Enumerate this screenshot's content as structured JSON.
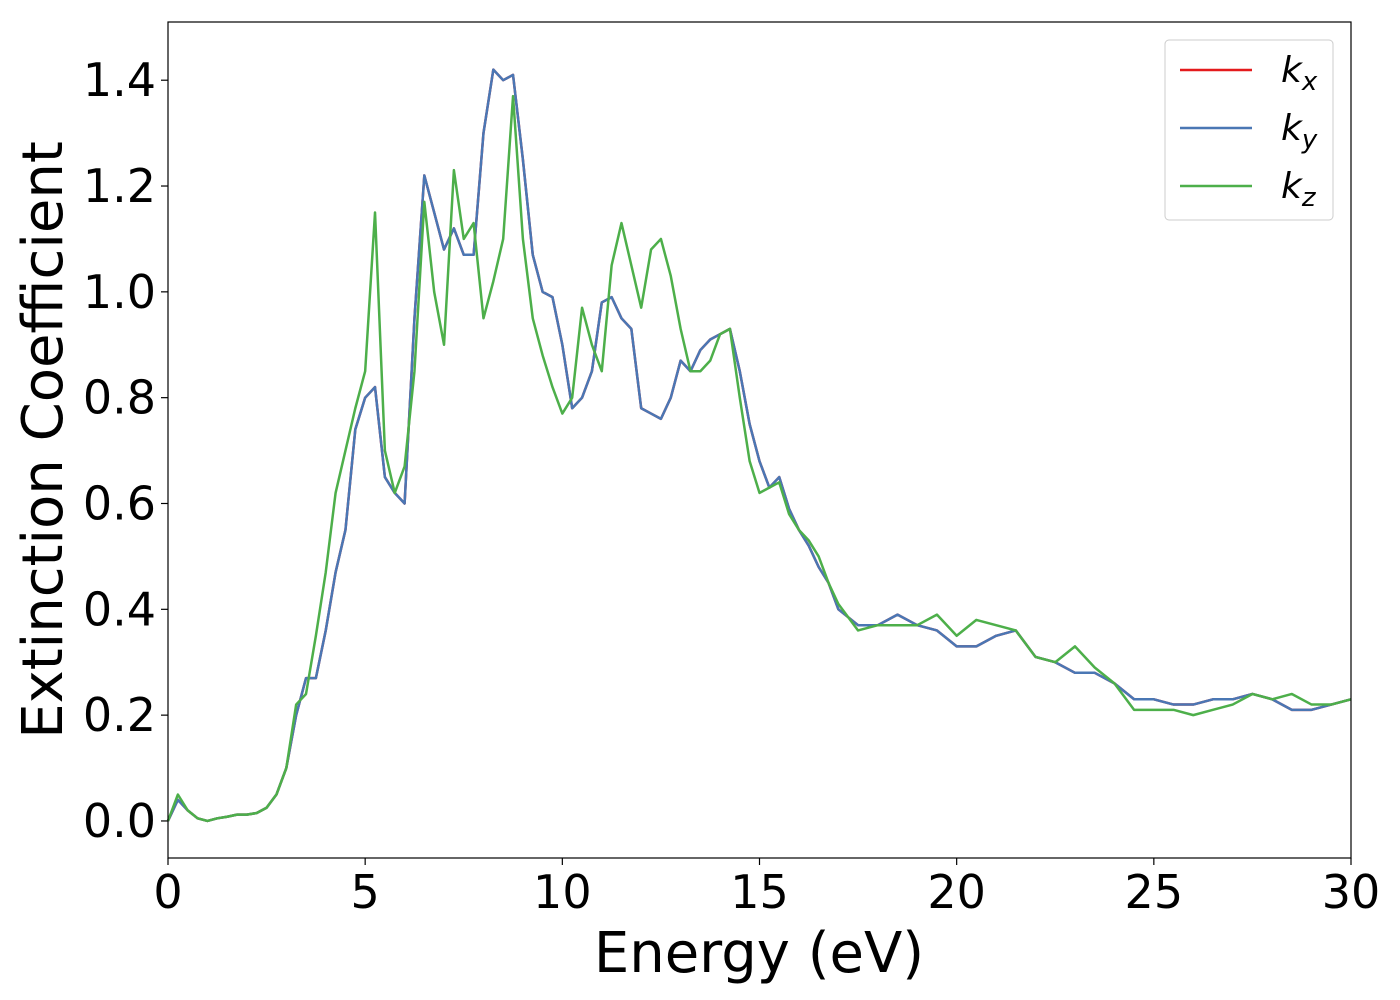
{
  "chart_data": {
    "type": "line",
    "x_label": "Energy (eV)",
    "y_label": "Extinction Coefficient",
    "x": [
      0,
      0.25,
      0.5,
      0.75,
      1,
      1.25,
      1.5,
      1.75,
      2,
      2.25,
      2.5,
      2.75,
      3,
      3.25,
      3.5,
      3.75,
      4,
      4.25,
      4.5,
      4.75,
      5,
      5.25,
      5.5,
      5.75,
      6,
      6.25,
      6.5,
      6.75,
      7,
      7.25,
      7.5,
      7.75,
      8,
      8.25,
      8.5,
      8.75,
      9,
      9.25,
      9.5,
      9.75,
      10,
      10.25,
      10.5,
      10.75,
      11,
      11.25,
      11.5,
      11.75,
      12,
      12.25,
      12.5,
      12.75,
      13,
      13.25,
      13.5,
      13.75,
      14,
      14.25,
      14.5,
      14.75,
      15,
      15.25,
      15.5,
      15.75,
      16,
      16.25,
      16.5,
      16.75,
      17,
      17.5,
      18,
      18.5,
      19,
      19.5,
      20,
      20.5,
      21,
      21.5,
      22,
      22.5,
      23,
      23.5,
      24,
      24.5,
      25,
      25.5,
      26,
      26.5,
      27,
      27.5,
      28,
      28.5,
      29,
      29.5,
      30
    ],
    "series": [
      {
        "name": "k_x",
        "color": "#e41a1c",
        "values": [
          0,
          0.04,
          0.02,
          0.005,
          0,
          0.005,
          0.008,
          0.012,
          0.012,
          0.015,
          0.025,
          0.05,
          0.1,
          0.2,
          0.27,
          0.27,
          0.36,
          0.47,
          0.55,
          0.74,
          0.8,
          0.82,
          0.65,
          0.62,
          0.6,
          0.95,
          1.22,
          1.15,
          1.08,
          1.12,
          1.07,
          1.07,
          1.3,
          1.42,
          1.4,
          1.41,
          1.25,
          1.07,
          1,
          0.99,
          0.9,
          0.78,
          0.8,
          0.85,
          0.98,
          0.99,
          0.95,
          0.93,
          0.78,
          0.77,
          0.76,
          0.8,
          0.87,
          0.85,
          0.89,
          0.91,
          0.92,
          0.93,
          0.85,
          0.75,
          0.68,
          0.63,
          0.65,
          0.59,
          0.55,
          0.52,
          0.48,
          0.45,
          0.4,
          0.37,
          0.37,
          0.39,
          0.37,
          0.36,
          0.33,
          0.33,
          0.35,
          0.36,
          0.31,
          0.3,
          0.28,
          0.28,
          0.26,
          0.23,
          0.23,
          0.22,
          0.22,
          0.23,
          0.23,
          0.24,
          0.23,
          0.21,
          0.21,
          0.22,
          0.23
        ]
      },
      {
        "name": "k_y",
        "color": "#4a77b4",
        "values": [
          0,
          0.04,
          0.02,
          0.005,
          0,
          0.005,
          0.008,
          0.012,
          0.012,
          0.015,
          0.025,
          0.05,
          0.1,
          0.2,
          0.27,
          0.27,
          0.36,
          0.47,
          0.55,
          0.74,
          0.8,
          0.82,
          0.65,
          0.62,
          0.6,
          0.95,
          1.22,
          1.15,
          1.08,
          1.12,
          1.07,
          1.07,
          1.3,
          1.42,
          1.4,
          1.41,
          1.25,
          1.07,
          1,
          0.99,
          0.9,
          0.78,
          0.8,
          0.85,
          0.98,
          0.99,
          0.95,
          0.93,
          0.78,
          0.77,
          0.76,
          0.8,
          0.87,
          0.85,
          0.89,
          0.91,
          0.92,
          0.93,
          0.85,
          0.75,
          0.68,
          0.63,
          0.65,
          0.59,
          0.55,
          0.52,
          0.48,
          0.45,
          0.4,
          0.37,
          0.37,
          0.39,
          0.37,
          0.36,
          0.33,
          0.33,
          0.35,
          0.36,
          0.31,
          0.3,
          0.28,
          0.28,
          0.26,
          0.23,
          0.23,
          0.22,
          0.22,
          0.23,
          0.23,
          0.24,
          0.23,
          0.21,
          0.21,
          0.22,
          0.23
        ]
      },
      {
        "name": "k_z",
        "color": "#4daf4a",
        "values": [
          0,
          0.05,
          0.02,
          0.005,
          0,
          0.005,
          0.008,
          0.012,
          0.012,
          0.015,
          0.025,
          0.05,
          0.1,
          0.22,
          0.24,
          0.35,
          0.47,
          0.62,
          0.7,
          0.78,
          0.85,
          1.15,
          0.7,
          0.62,
          0.67,
          0.85,
          1.17,
          1,
          0.9,
          1.23,
          1.1,
          1.13,
          0.95,
          1.02,
          1.1,
          1.37,
          1.1,
          0.95,
          0.88,
          0.82,
          0.77,
          0.8,
          0.97,
          0.9,
          0.85,
          1.05,
          1.13,
          1.05,
          0.97,
          1.08,
          1.1,
          1.03,
          0.93,
          0.85,
          0.85,
          0.87,
          0.92,
          0.93,
          0.8,
          0.68,
          0.62,
          0.63,
          0.64,
          0.58,
          0.55,
          0.53,
          0.5,
          0.45,
          0.41,
          0.36,
          0.37,
          0.37,
          0.37,
          0.39,
          0.35,
          0.38,
          0.37,
          0.36,
          0.31,
          0.3,
          0.33,
          0.29,
          0.26,
          0.21,
          0.21,
          0.21,
          0.2,
          0.21,
          0.22,
          0.24,
          0.23,
          0.24,
          0.22,
          0.22,
          0.23
        ]
      }
    ],
    "xlim": [
      0,
      30
    ],
    "xticks": [
      0,
      5,
      10,
      15,
      20,
      25,
      30
    ],
    "ylim": [
      -0.07,
      1.51
    ],
    "yticks": [
      {
        "value": 0,
        "label": "0.0"
      },
      0.2,
      0.4,
      0.6,
      0.8,
      {
        "value": 1,
        "label": "1.0"
      },
      1.2,
      1.4
    ],
    "grid": false,
    "legend": "upper right"
  }
}
